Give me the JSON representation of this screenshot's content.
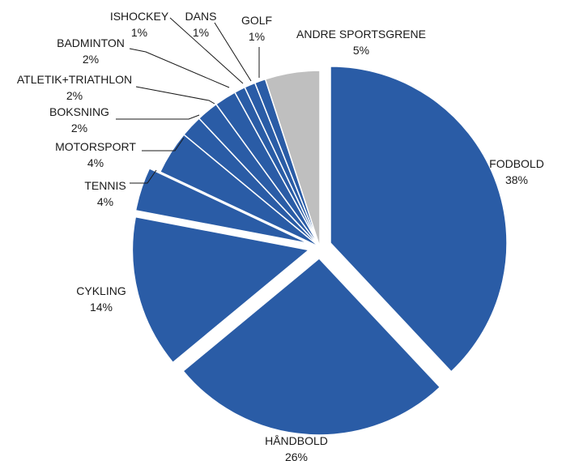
{
  "chart_data": {
    "type": "pie",
    "title": "",
    "categories": [
      "FODBOLD",
      "HÅNDBOLD",
      "CYKLING",
      "TENNIS",
      "MOTORSPORT",
      "BOKSNING",
      "ATLETIK+TRIATHLON",
      "BADMINTON",
      "ISHOCKEY",
      "DANS",
      "GOLF",
      "ANDRE SPORTSGRENE"
    ],
    "values": [
      38,
      26,
      14,
      4,
      4,
      2,
      2,
      2,
      1,
      1,
      1,
      5
    ],
    "value_labels": [
      "38%",
      "26%",
      "14%",
      "4%",
      "4%",
      "2%",
      "2%",
      "2%",
      "1%",
      "1%",
      "1%",
      "5%"
    ],
    "colors": [
      "#2a5ca6",
      "#2a5ca6",
      "#2a5ca6",
      "#2a5ca6",
      "#2a5ca6",
      "#2a5ca6",
      "#2a5ca6",
      "#2a5ca6",
      "#2a5ca6",
      "#2a5ca6",
      "#2a5ca6",
      "#bfbfbf"
    ],
    "exploded": [
      "FODBOLD",
      "HÅNDBOLD",
      "CYKLING",
      "TENNIS"
    ],
    "legend": "none"
  }
}
